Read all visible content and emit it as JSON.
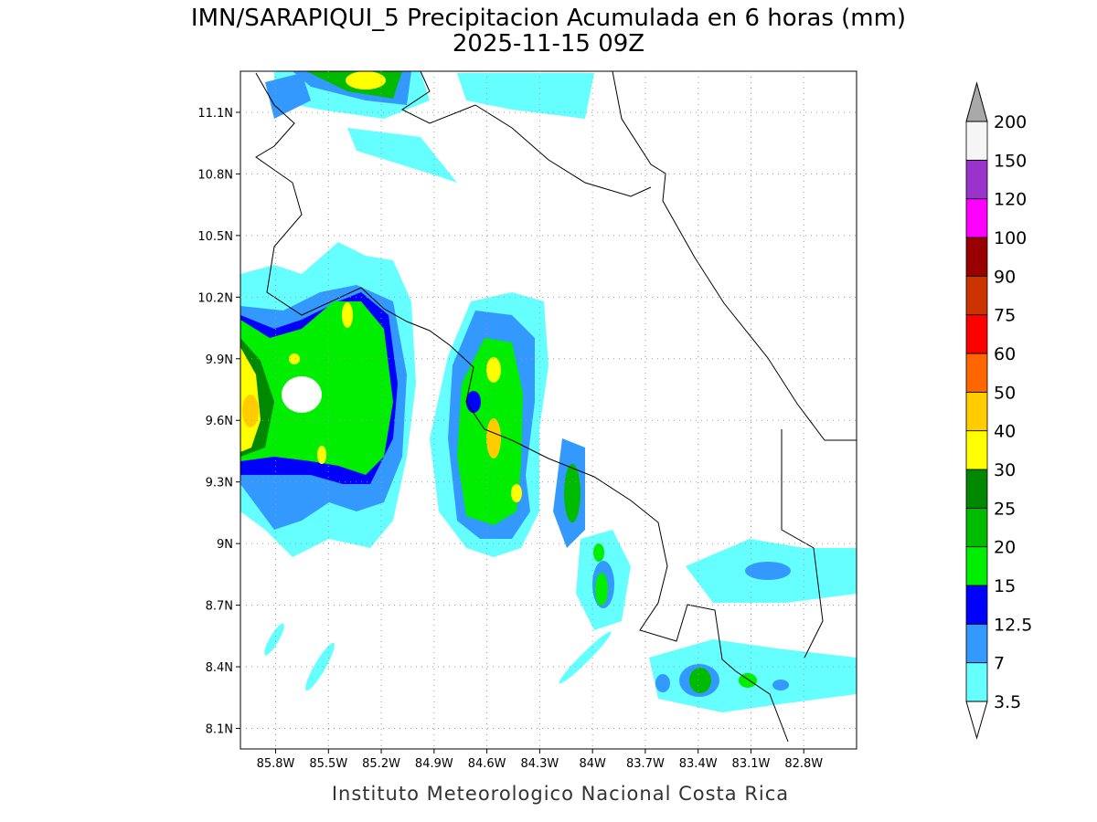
{
  "map": {
    "title": "IMN/SARAPIQUI_5 Precipitacion Acumulada en 6 horas (mm)",
    "subtitle": "2025-11-15 09Z",
    "footer": "Instituto Meteorologico Nacional Costa Rica",
    "lonlim": [
      -86,
      -82.5
    ],
    "latlim": [
      8,
      11.3
    ],
    "lon_ticks": [
      {
        "value": -85.8,
        "label": "85.8W"
      },
      {
        "value": -85.5,
        "label": "85.5W"
      },
      {
        "value": -85.2,
        "label": "85.2W"
      },
      {
        "value": -84.9,
        "label": "84.9W"
      },
      {
        "value": -84.6,
        "label": "84.6W"
      },
      {
        "value": -84.3,
        "label": "84.3W"
      },
      {
        "value": -84,
        "label": "84W"
      },
      {
        "value": -83.7,
        "label": "83.7W"
      },
      {
        "value": -83.4,
        "label": "83.4W"
      },
      {
        "value": -83.1,
        "label": "83.1W"
      },
      {
        "value": -82.8,
        "label": "82.8W"
      }
    ],
    "lat_ticks": [
      {
        "value": 8.1,
        "label": "8.1N"
      },
      {
        "value": 8.4,
        "label": "8.4N"
      },
      {
        "value": 8.7,
        "label": "8.7N"
      },
      {
        "value": 9,
        "label": "9N"
      },
      {
        "value": 9.3,
        "label": "9.3N"
      },
      {
        "value": 9.6,
        "label": "9.6N"
      },
      {
        "value": 9.9,
        "label": "9.9N"
      },
      {
        "value": 10.2,
        "label": "10.2N"
      },
      {
        "value": 10.5,
        "label": "10.5N"
      },
      {
        "value": 10.8,
        "label": "10.8N"
      },
      {
        "value": 11.1,
        "label": "11.1N"
      }
    ],
    "grid": true,
    "colorbar": {
      "levels": [
        3.5,
        7,
        12.5,
        15,
        20,
        25,
        30,
        40,
        50,
        60,
        75,
        90,
        100,
        120,
        150,
        200
      ],
      "colors": [
        "#66ffff",
        "#3399ff",
        "#0000ff",
        "#00ee00",
        "#00bb00",
        "#008800",
        "#ffff00",
        "#ffcc00",
        "#ff6600",
        "#ff0000",
        "#cc3300",
        "#990000",
        "#ff00ff",
        "#9933cc",
        "#f5f5f5"
      ],
      "under_color": "#ffffff",
      "over_color": "#a9a9a9"
    }
  }
}
